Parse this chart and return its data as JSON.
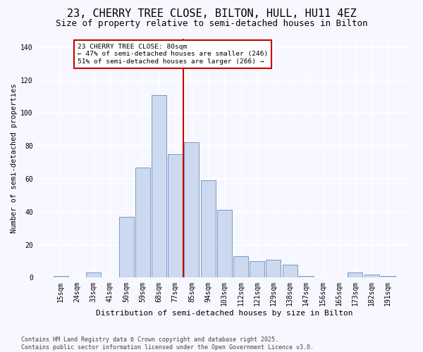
{
  "title_line1": "23, CHERRY TREE CLOSE, BILTON, HULL, HU11 4EZ",
  "title_line2": "Size of property relative to semi-detached houses in Bilton",
  "xlabel": "Distribution of semi-detached houses by size in Bilton",
  "ylabel": "Number of semi-detached properties",
  "categories": [
    "15sqm",
    "24sqm",
    "33sqm",
    "41sqm",
    "50sqm",
    "59sqm",
    "68sqm",
    "77sqm",
    "85sqm",
    "94sqm",
    "103sqm",
    "112sqm",
    "121sqm",
    "129sqm",
    "138sqm",
    "147sqm",
    "156sqm",
    "165sqm",
    "173sqm",
    "182sqm",
    "191sqm"
  ],
  "values": [
    1,
    0,
    3,
    0,
    37,
    67,
    111,
    75,
    82,
    59,
    41,
    13,
    10,
    11,
    8,
    1,
    0,
    0,
    3,
    2,
    1
  ],
  "bar_color": "#ccd9ee",
  "bar_edge_color": "#7799cc",
  "vline_x_index": 7.5,
  "vline_color": "#cc0000",
  "annotation_text": "23 CHERRY TREE CLOSE: 80sqm\n← 47% of semi-detached houses are smaller (246)\n51% of semi-detached houses are larger (266) →",
  "annotation_box_color": "#ffffff",
  "annotation_edge_color": "#cc0000",
  "ylim": [
    0,
    145
  ],
  "yticks": [
    0,
    20,
    40,
    60,
    80,
    100,
    120,
    140
  ],
  "footnote": "Contains HM Land Registry data © Crown copyright and database right 2025.\nContains public sector information licensed under the Open Government Licence v3.0.",
  "bg_color": "#f7f8ff",
  "plot_bg_color": "#f7f8ff",
  "grid_color": "#ffffff",
  "title_fontsize": 11,
  "subtitle_fontsize": 9,
  "tick_fontsize": 7,
  "footnote_fontsize": 6,
  "ylabel_fontsize": 7.5,
  "xlabel_fontsize": 8
}
